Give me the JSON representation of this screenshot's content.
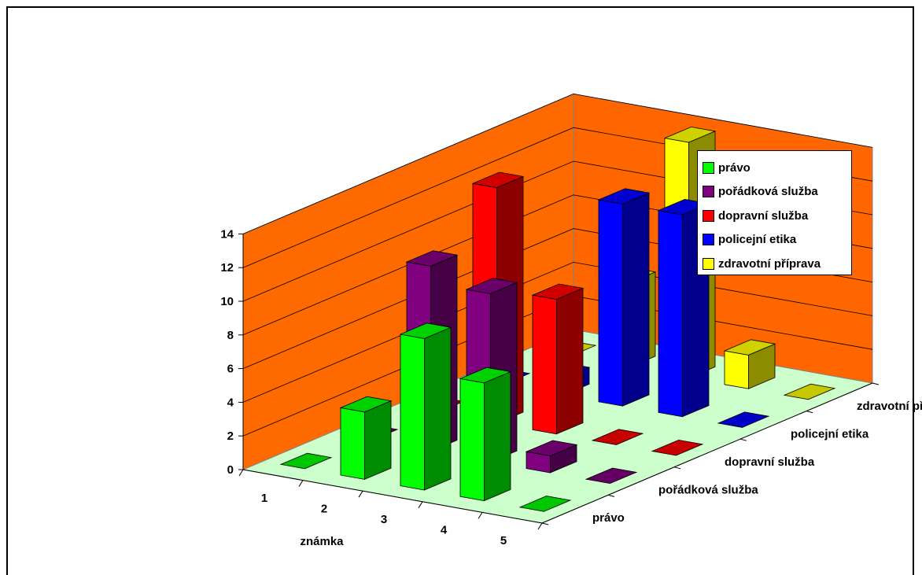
{
  "chart_data": {
    "type": "bar",
    "subtype": "3d-column",
    "title": "",
    "xlabel": "známka",
    "ylabel": "",
    "zlabel": "",
    "categories": [
      "1",
      "2",
      "3",
      "4",
      "5"
    ],
    "ylim": [
      0,
      14
    ],
    "yticks": [
      "0",
      "2",
      "4",
      "6",
      "8",
      "10",
      "12",
      "14"
    ],
    "grid": true,
    "legend_position": "right",
    "series": [
      {
        "name": "právo",
        "color": "#00ff00",
        "values": [
          0,
          4,
          9,
          7,
          0
        ]
      },
      {
        "name": "pořádková služba",
        "color": "#800080",
        "values": [
          0,
          11,
          10,
          1,
          0
        ]
      },
      {
        "name": "dopravní služba",
        "color": "#ff0000",
        "values": [
          0,
          14,
          8,
          0,
          0
        ]
      },
      {
        "name": "policejní etika",
        "color": "#0000ff",
        "values": [
          0,
          1,
          12,
          12,
          0
        ]
      },
      {
        "name": "zdravotní příprava",
        "color": "#ffff00",
        "values": [
          0,
          5,
          14,
          2,
          0
        ]
      }
    ]
  }
}
